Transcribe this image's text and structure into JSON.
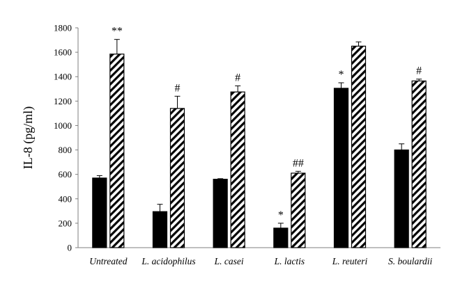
{
  "chart_data": {
    "type": "bar",
    "categories": [
      "Untreated",
      "L. acidophilus",
      "L. casei",
      "L. lactis",
      "L. reuteri",
      "S. boulardii"
    ],
    "series": [
      {
        "fill": "solid",
        "color": "#000000",
        "values": [
          570,
          295,
          560,
          160,
          1305,
          800
        ],
        "errors": [
          20,
          60,
          5,
          40,
          45,
          50
        ],
        "annotations": [
          "",
          "",
          "",
          "*",
          "*",
          ""
        ]
      },
      {
        "fill": "diagonal-hatch",
        "color": "#000000",
        "values": [
          1585,
          1140,
          1275,
          610,
          1650,
          1365
        ],
        "errors": [
          120,
          100,
          50,
          15,
          35,
          15
        ],
        "annotations": [
          "**",
          "#",
          "#",
          "##",
          "",
          "#"
        ]
      }
    ],
    "title": "",
    "xlabel": "",
    "ylabel": "IL-8 (pg/ml)",
    "ylim": [
      0,
      1800
    ],
    "yticks": [
      0,
      200,
      400,
      600,
      800,
      1000,
      1200,
      1400,
      1600,
      1800
    ],
    "grid": false,
    "legend": "none"
  }
}
